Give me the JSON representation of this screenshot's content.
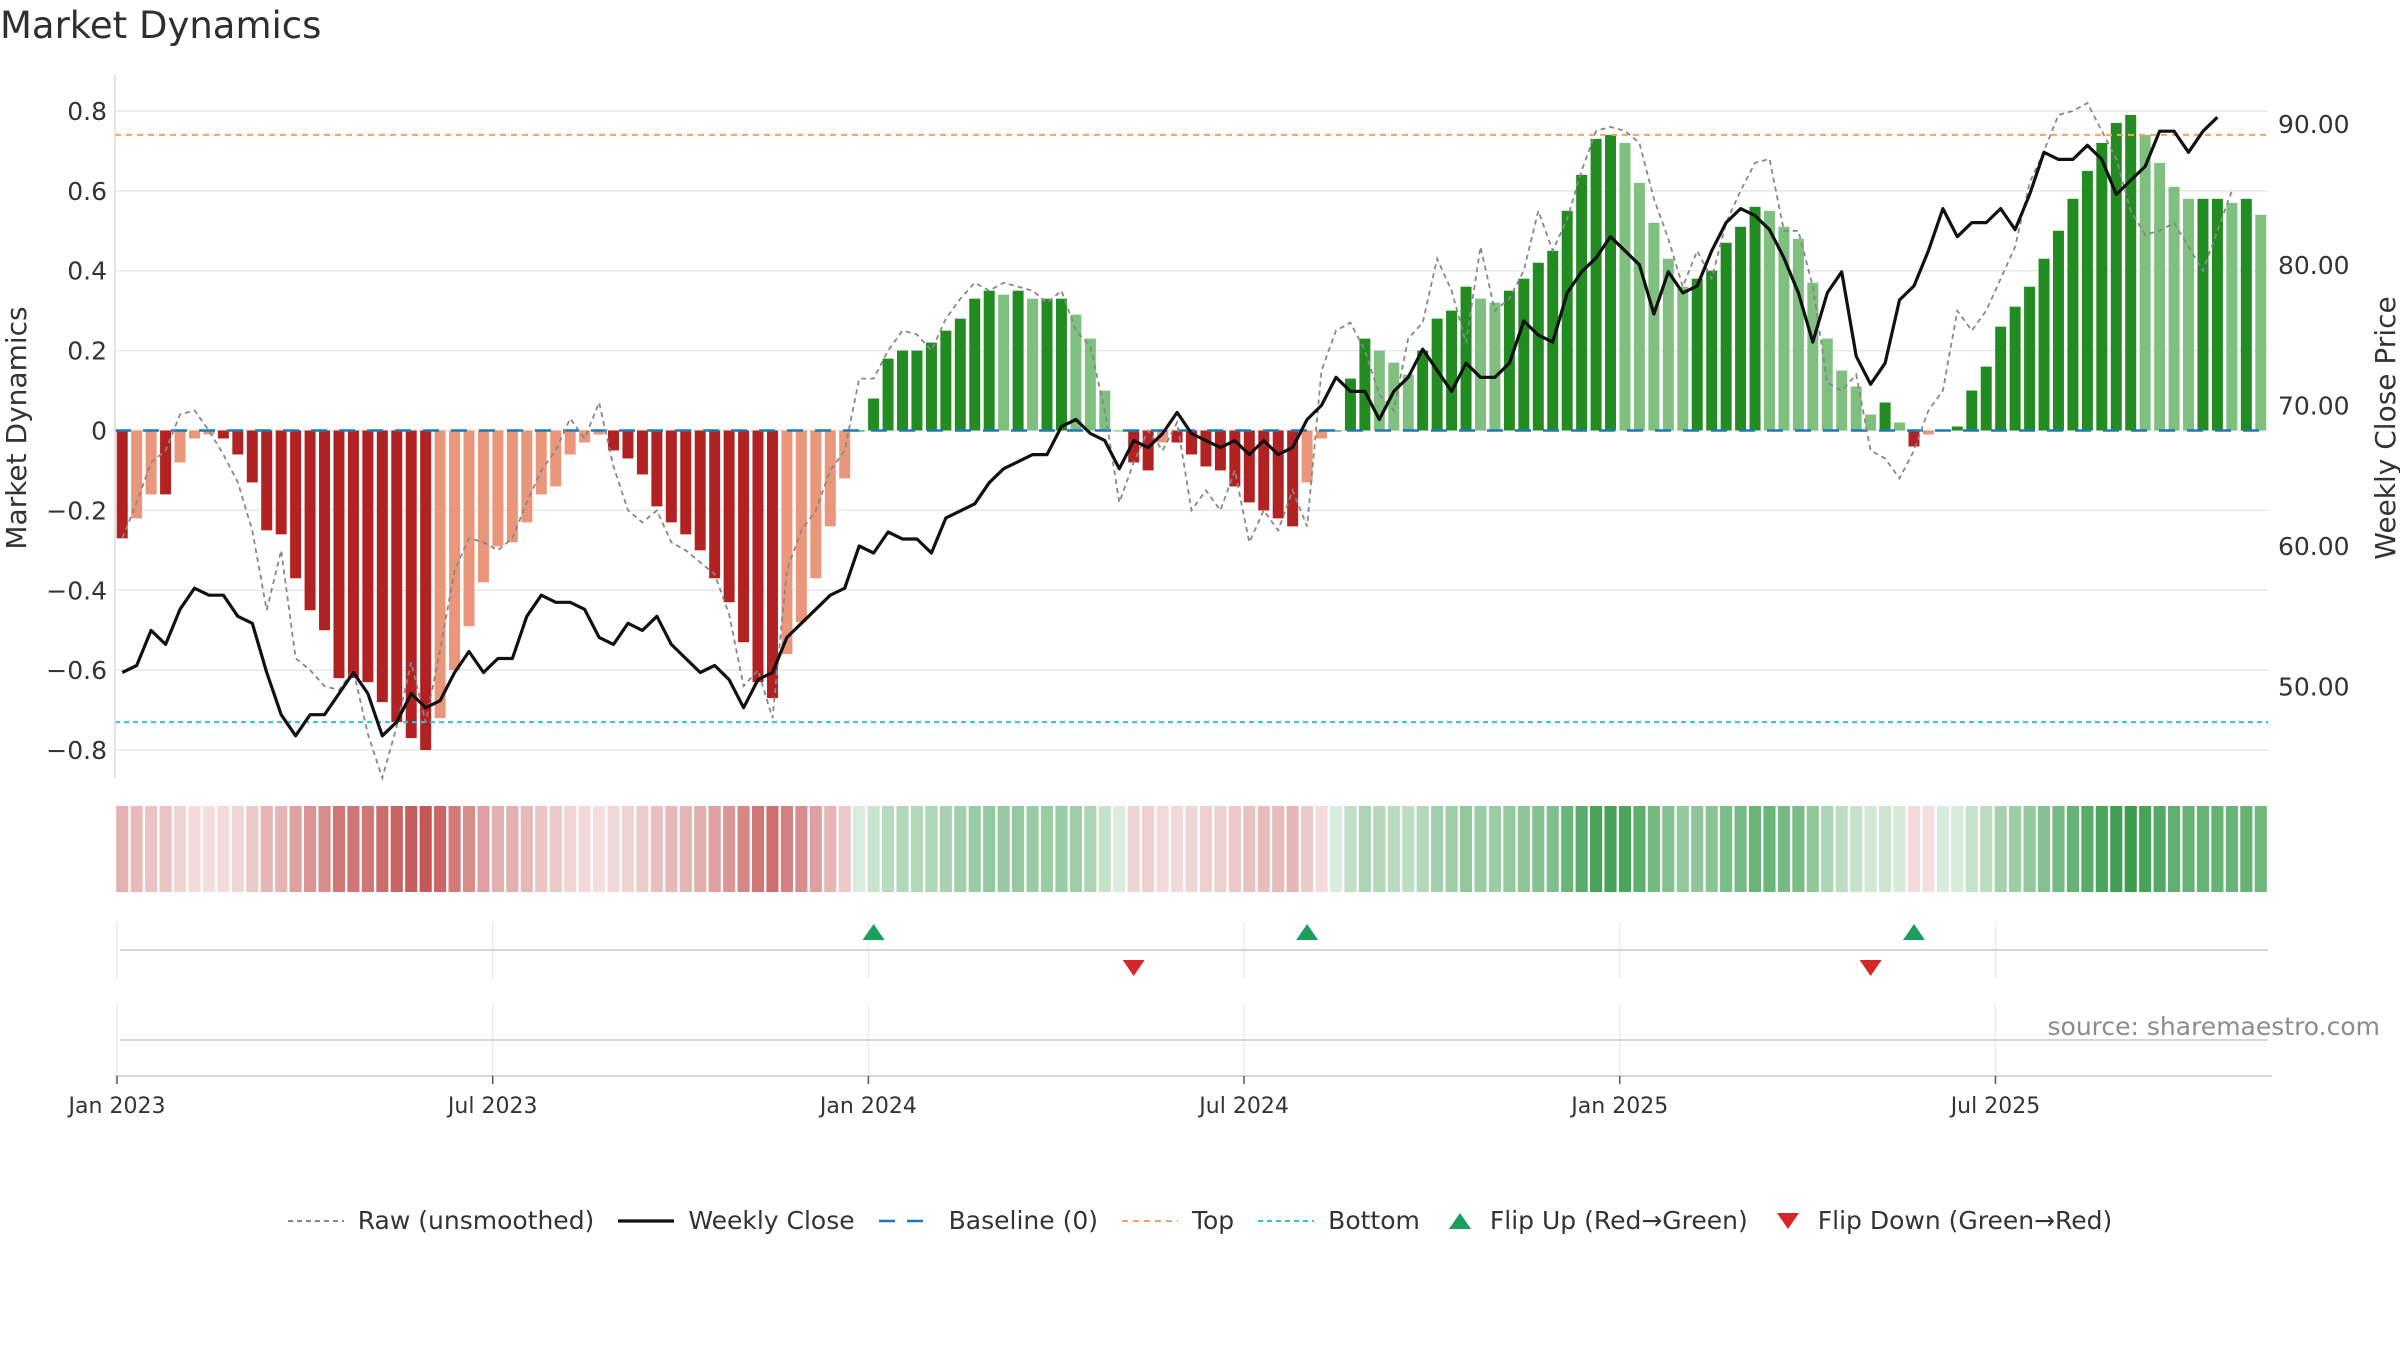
{
  "title": "Market Dynamics",
  "source": "source: sharemaestro.com",
  "colors": {
    "strong_green": "#228B22",
    "weak_green": "#7FBF7F",
    "strong_red": "#B22222",
    "weak_red": "#E9967A",
    "close": "#111111",
    "raw": "#888888",
    "baseline": "#1f77b4",
    "top": "#f4a261",
    "bottom": "#2ec4d6",
    "flip_up": "#1aa05a",
    "flip_down": "#d62728"
  },
  "legend": [
    {
      "key": "raw",
      "label": "Raw (unsmoothed)"
    },
    {
      "key": "close",
      "label": "Weekly Close"
    },
    {
      "key": "baseline",
      "label": "Baseline (0)"
    },
    {
      "key": "top",
      "label": "Top"
    },
    {
      "key": "bottom",
      "label": "Bottom"
    },
    {
      "key": "flip_up",
      "label": "Flip Up (Red→Green)"
    },
    {
      "key": "flip_down",
      "label": "Flip Down (Green→Red)"
    }
  ],
  "chart_data": {
    "type": "bar",
    "ylabel_left": "Market Dynamics",
    "ylabel_right": "Weekly Close Price",
    "ylim_left": [
      -0.87,
      0.89
    ],
    "ylim_right": [
      43.5,
      93.5
    ],
    "yticks_left": [
      "0.8",
      "0.6",
      "0.4",
      "0.2",
      "0",
      "−0.2",
      "−0.4",
      "−0.6",
      "−0.8"
    ],
    "yticks_right": [
      "90.00",
      "80.00",
      "70.00",
      "60.00",
      "50.00"
    ],
    "xticks": [
      "Jan 2023",
      "Jul 2023",
      "Jan 2024",
      "Jul 2024",
      "Jan 2025",
      "Jul 2025"
    ],
    "xtick_weeks": [
      0,
      26,
      52,
      78,
      104,
      130
    ],
    "top_line": 0.74,
    "bottom_line": -0.73,
    "baseline": 0,
    "grid": true,
    "legend_position": "bottom",
    "dynamics": [
      -0.27,
      -0.22,
      -0.16,
      -0.16,
      -0.08,
      -0.02,
      -0.01,
      -0.02,
      -0.06,
      -0.13,
      -0.25,
      -0.26,
      -0.37,
      -0.45,
      -0.5,
      -0.62,
      -0.62,
      -0.63,
      -0.68,
      -0.73,
      -0.77,
      -0.8,
      -0.72,
      -0.6,
      -0.49,
      -0.38,
      -0.29,
      -0.28,
      -0.23,
      -0.16,
      -0.14,
      -0.06,
      -0.03,
      -0.01,
      -0.05,
      -0.07,
      -0.11,
      -0.19,
      -0.23,
      -0.26,
      -0.3,
      -0.37,
      -0.43,
      -0.53,
      -0.63,
      -0.67,
      -0.56,
      -0.48,
      -0.37,
      -0.24,
      -0.12,
      0.0,
      0.08,
      0.18,
      0.2,
      0.2,
      0.22,
      0.25,
      0.28,
      0.33,
      0.35,
      0.34,
      0.35,
      0.33,
      0.33,
      0.33,
      0.29,
      0.23,
      0.1,
      0.0,
      -0.08,
      -0.1,
      -0.03,
      -0.03,
      -0.06,
      -0.09,
      -0.1,
      -0.14,
      -0.18,
      -0.2,
      -0.22,
      -0.24,
      -0.13,
      -0.02,
      0.0,
      0.13,
      0.23,
      0.2,
      0.17,
      0.14,
      0.2,
      0.28,
      0.3,
      0.36,
      0.33,
      0.32,
      0.35,
      0.38,
      0.42,
      0.45,
      0.55,
      0.64,
      0.73,
      0.74,
      0.72,
      0.62,
      0.52,
      0.43,
      0.36,
      0.38,
      0.4,
      0.47,
      0.51,
      0.56,
      0.55,
      0.51,
      0.48,
      0.37,
      0.23,
      0.15,
      0.11,
      0.04,
      0.07,
      0.02,
      -0.04,
      -0.01,
      0.0,
      0.01,
      0.1,
      0.16,
      0.26,
      0.31,
      0.36,
      0.43,
      0.5,
      0.58,
      0.65,
      0.72,
      0.77,
      0.79,
      0.74,
      0.67,
      0.61,
      0.58,
      0.58,
      0.58,
      0.57,
      0.58,
      0.54
    ],
    "raw": [
      -0.27,
      -0.18,
      -0.08,
      -0.05,
      0.04,
      0.05,
      0.0,
      -0.06,
      -0.13,
      -0.25,
      -0.45,
      -0.3,
      -0.57,
      -0.6,
      -0.64,
      -0.65,
      -0.6,
      -0.76,
      -0.87,
      -0.74,
      -0.58,
      -0.73,
      -0.55,
      -0.35,
      -0.27,
      -0.28,
      -0.3,
      -0.27,
      -0.18,
      -0.1,
      -0.05,
      0.03,
      -0.02,
      0.07,
      -0.09,
      -0.2,
      -0.23,
      -0.2,
      -0.28,
      -0.3,
      -0.33,
      -0.36,
      -0.46,
      -0.64,
      -0.6,
      -0.72,
      -0.35,
      -0.25,
      -0.2,
      -0.1,
      -0.05,
      0.13,
      0.13,
      0.2,
      0.25,
      0.24,
      0.2,
      0.28,
      0.33,
      0.37,
      0.35,
      0.37,
      0.36,
      0.35,
      0.32,
      0.35,
      0.25,
      0.21,
      0.05,
      -0.18,
      -0.08,
      0.0,
      -0.05,
      0.02,
      -0.2,
      -0.15,
      -0.2,
      -0.1,
      -0.28,
      -0.2,
      -0.25,
      -0.15,
      -0.24,
      0.15,
      0.25,
      0.27,
      0.2,
      0.09,
      0.05,
      0.23,
      0.27,
      0.43,
      0.35,
      0.22,
      0.46,
      0.3,
      0.33,
      0.4,
      0.55,
      0.45,
      0.53,
      0.65,
      0.75,
      0.76,
      0.75,
      0.72,
      0.58,
      0.48,
      0.36,
      0.45,
      0.38,
      0.52,
      0.6,
      0.67,
      0.68,
      0.5,
      0.5,
      0.36,
      0.12,
      0.1,
      0.14,
      -0.05,
      -0.07,
      -0.12,
      -0.05,
      0.05,
      0.1,
      0.3,
      0.25,
      0.3,
      0.38,
      0.46,
      0.62,
      0.7,
      0.79,
      0.8,
      0.82,
      0.75,
      0.68,
      0.55,
      0.49,
      0.5,
      0.52,
      0.46,
      0.4,
      0.5,
      0.6
    ],
    "close": [
      51.0,
      51.5,
      54.0,
      53.0,
      55.5,
      57.0,
      56.5,
      56.5,
      55.0,
      54.5,
      51.0,
      48.0,
      46.5,
      48.0,
      48.0,
      49.5,
      51.0,
      49.5,
      46.5,
      47.5,
      49.5,
      48.5,
      49.0,
      51.0,
      52.5,
      51.0,
      52.0,
      52.0,
      55.0,
      56.5,
      56.0,
      56.0,
      55.5,
      53.5,
      53.0,
      54.5,
      54.0,
      55.0,
      53.0,
      52.0,
      51.0,
      51.5,
      50.5,
      48.5,
      50.5,
      51.0,
      53.5,
      54.5,
      55.5,
      56.5,
      57.0,
      60.0,
      59.5,
      61.0,
      60.5,
      60.5,
      59.5,
      62.0,
      62.5,
      63.0,
      64.5,
      65.5,
      66.0,
      66.5,
      66.5,
      68.5,
      69.0,
      68.0,
      67.5,
      65.5,
      67.5,
      67.0,
      68.0,
      69.5,
      68.0,
      67.5,
      67.0,
      67.5,
      66.5,
      67.5,
      66.5,
      67.0,
      69.0,
      70.0,
      72.0,
      71.0,
      71.0,
      69.0,
      71.0,
      72.0,
      74.0,
      72.5,
      71.0,
      73.0,
      72.0,
      72.0,
      73.0,
      76.0,
      75.0,
      74.5,
      78.0,
      79.5,
      80.5,
      82.0,
      81.0,
      80.0,
      76.5,
      79.5,
      78.0,
      78.5,
      81.0,
      83.0,
      84.0,
      83.5,
      82.5,
      80.5,
      78.0,
      74.5,
      78.0,
      79.5,
      73.5,
      71.5,
      73.0,
      77.5,
      78.5,
      81.0,
      84.0,
      82.0,
      83.0,
      83.0,
      84.0,
      82.5,
      85.0,
      88.0,
      87.5,
      87.5,
      88.5,
      87.5,
      85.0,
      86.0,
      87.0,
      89.5,
      89.5,
      88.0,
      89.5,
      90.5
    ],
    "flips": [
      {
        "type": "up",
        "week": 52
      },
      {
        "type": "down",
        "week": 70
      },
      {
        "type": "up",
        "week": 82
      },
      {
        "type": "down",
        "week": 121
      },
      {
        "type": "up",
        "week": 124
      }
    ],
    "strip_rows": 2
  }
}
